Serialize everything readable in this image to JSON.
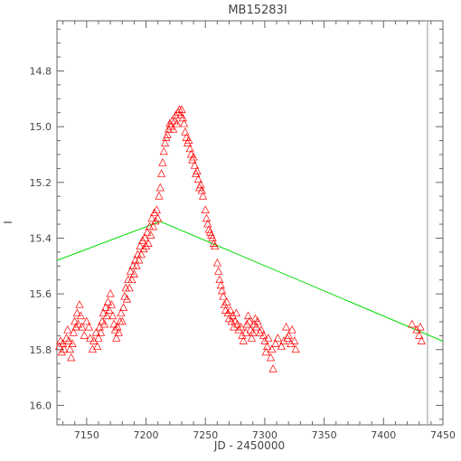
{
  "chart_data": {
    "type": "scatter",
    "title": "MB15283I",
    "xlabel": "JD - 2450000",
    "ylabel": "I",
    "xlim": [
      7125,
      7450
    ],
    "ylim": [
      16.07,
      14.62
    ],
    "y_inverted": true,
    "grid": false,
    "x_ticks": [
      7150,
      7200,
      7250,
      7300,
      7350,
      7400,
      7450
    ],
    "x_tick_labels": [
      "7150",
      "7200",
      "7250",
      "7300",
      "7350",
      "7400",
      "7450"
    ],
    "y_ticks": [
      14.8,
      15.0,
      15.2,
      15.4,
      15.6,
      15.8,
      16.0
    ],
    "y_tick_labels": [
      "14.8",
      "15.0",
      "15.2",
      "15.4",
      "15.6",
      "15.8",
      "16.0"
    ],
    "series": [
      {
        "marker": "triangle-open",
        "color": "#ff0000",
        "points": [
          [
            7127,
            15.79
          ],
          [
            7128,
            15.77
          ],
          [
            7129,
            15.81
          ],
          [
            7130,
            15.78
          ],
          [
            7131,
            15.8
          ],
          [
            7133,
            15.76
          ],
          [
            7134,
            15.73
          ],
          [
            7135,
            15.77
          ],
          [
            7136,
            15.8
          ],
          [
            7137,
            15.83
          ],
          [
            7138,
            15.78
          ],
          [
            7139,
            15.74
          ],
          [
            7140,
            15.7
          ],
          [
            7141,
            15.72
          ],
          [
            7142,
            15.67
          ],
          [
            7143,
            15.71
          ],
          [
            7144,
            15.64
          ],
          [
            7145,
            15.68
          ],
          [
            7146,
            15.72
          ],
          [
            7148,
            15.75
          ],
          [
            7150,
            15.7
          ],
          [
            7152,
            15.72
          ],
          [
            7153,
            15.76
          ],
          [
            7155,
            15.8
          ],
          [
            7156,
            15.77
          ],
          [
            7158,
            15.74
          ],
          [
            7159,
            15.79
          ],
          [
            7160,
            15.76
          ],
          [
            7161,
            15.72
          ],
          [
            7162,
            15.74
          ],
          [
            7163,
            15.7
          ],
          [
            7164,
            15.67
          ],
          [
            7165,
            15.71
          ],
          [
            7166,
            15.65
          ],
          [
            7167,
            15.68
          ],
          [
            7168,
            15.63
          ],
          [
            7169,
            15.66
          ],
          [
            7170,
            15.6
          ],
          [
            7171,
            15.64
          ],
          [
            7172,
            15.68
          ],
          [
            7173,
            15.71
          ],
          [
            7174,
            15.73
          ],
          [
            7175,
            15.76
          ],
          [
            7176,
            15.72
          ],
          [
            7177,
            15.74
          ],
          [
            7178,
            15.7
          ],
          [
            7179,
            15.67
          ],
          [
            7180,
            15.7
          ],
          [
            7181,
            15.65
          ],
          [
            7182,
            15.61
          ],
          [
            7183,
            15.58
          ],
          [
            7184,
            15.62
          ],
          [
            7185,
            15.55
          ],
          [
            7186,
            15.58
          ],
          [
            7187,
            15.52
          ],
          [
            7188,
            15.55
          ],
          [
            7189,
            15.5
          ],
          [
            7190,
            15.53
          ],
          [
            7191,
            15.48
          ],
          [
            7192,
            15.5
          ],
          [
            7193,
            15.46
          ],
          [
            7194,
            15.48
          ],
          [
            7195,
            15.43
          ],
          [
            7196,
            15.46
          ],
          [
            7197,
            15.41
          ],
          [
            7198,
            15.44
          ],
          [
            7199,
            15.4
          ],
          [
            7200,
            15.43
          ],
          [
            7201,
            15.38
          ],
          [
            7202,
            15.42
          ],
          [
            7203,
            15.36
          ],
          [
            7204,
            15.39
          ],
          [
            7205,
            15.33
          ],
          [
            7206,
            15.36
          ],
          [
            7207,
            15.31
          ],
          [
            7208,
            15.34
          ],
          [
            7209,
            15.3
          ],
          [
            7210,
            15.33
          ],
          [
            7211,
            15.25
          ],
          [
            7212,
            15.22
          ],
          [
            7213,
            15.17
          ],
          [
            7214,
            15.13
          ],
          [
            7215,
            15.09
          ],
          [
            7216,
            15.06
          ],
          [
            7217,
            15.04
          ],
          [
            7218,
            15.03
          ],
          [
            7219,
            15.01
          ],
          [
            7220,
            14.99
          ],
          [
            7221,
            15.0
          ],
          [
            7222,
            14.98
          ],
          [
            7223,
            15.01
          ],
          [
            7224,
            14.98
          ],
          [
            7225,
            14.96
          ],
          [
            7226,
            14.99
          ],
          [
            7227,
            14.95
          ],
          [
            7228,
            14.94
          ],
          [
            7229,
            14.96
          ],
          [
            7230,
            14.94
          ],
          [
            7231,
            14.97
          ],
          [
            7232,
            14.99
          ],
          [
            7233,
            15.02
          ],
          [
            7234,
            15.04
          ],
          [
            7235,
            15.06
          ],
          [
            7236,
            15.05
          ],
          [
            7237,
            15.08
          ],
          [
            7238,
            15.1
          ],
          [
            7239,
            15.12
          ],
          [
            7240,
            15.11
          ],
          [
            7241,
            15.14
          ],
          [
            7242,
            15.17
          ],
          [
            7243,
            15.16
          ],
          [
            7244,
            15.19
          ],
          [
            7245,
            15.22
          ],
          [
            7246,
            15.21
          ],
          [
            7247,
            15.23
          ],
          [
            7248,
            15.25
          ],
          [
            7250,
            15.3
          ],
          [
            7251,
            15.33
          ],
          [
            7252,
            15.35
          ],
          [
            7253,
            15.37
          ],
          [
            7254,
            15.38
          ],
          [
            7255,
            15.39
          ],
          [
            7256,
            15.4
          ],
          [
            7257,
            15.42
          ],
          [
            7258,
            15.43
          ],
          [
            7260,
            15.49
          ],
          [
            7261,
            15.52
          ],
          [
            7262,
            15.55
          ],
          [
            7263,
            15.57
          ],
          [
            7264,
            15.59
          ],
          [
            7265,
            15.61
          ],
          [
            7266,
            15.64
          ],
          [
            7267,
            15.66
          ],
          [
            7268,
            15.63
          ],
          [
            7269,
            15.67
          ],
          [
            7270,
            15.69
          ],
          [
            7271,
            15.66
          ],
          [
            7272,
            15.7
          ],
          [
            7273,
            15.68
          ],
          [
            7274,
            15.72
          ],
          [
            7275,
            15.7
          ],
          [
            7276,
            15.67
          ],
          [
            7277,
            15.71
          ],
          [
            7278,
            15.73
          ],
          [
            7280,
            15.72
          ],
          [
            7281,
            15.75
          ],
          [
            7282,
            15.77
          ],
          [
            7284,
            15.74
          ],
          [
            7285,
            15.71
          ],
          [
            7286,
            15.68
          ],
          [
            7287,
            15.7
          ],
          [
            7288,
            15.73
          ],
          [
            7289,
            15.76
          ],
          [
            7290,
            15.74
          ],
          [
            7291,
            15.71
          ],
          [
            7292,
            15.69
          ],
          [
            7293,
            15.72
          ],
          [
            7294,
            15.7
          ],
          [
            7296,
            15.74
          ],
          [
            7297,
            15.73
          ],
          [
            7299,
            15.75
          ],
          [
            7300,
            15.77
          ],
          [
            7301,
            15.81
          ],
          [
            7302,
            15.79
          ],
          [
            7303,
            15.76
          ],
          [
            7305,
            15.83
          ],
          [
            7306,
            15.8
          ],
          [
            7307,
            15.87
          ],
          [
            7309,
            15.78
          ],
          [
            7311,
            15.76
          ],
          [
            7314,
            15.79
          ],
          [
            7316,
            15.77
          ],
          [
            7318,
            15.72
          ],
          [
            7319,
            15.76
          ],
          [
            7320,
            15.75
          ],
          [
            7322,
            15.78
          ],
          [
            7323,
            15.73
          ],
          [
            7325,
            15.77
          ],
          [
            7326,
            15.8
          ],
          [
            7424,
            15.71
          ],
          [
            7428,
            15.73
          ],
          [
            7430,
            15.75
          ],
          [
            7431,
            15.72
          ],
          [
            7432,
            15.77
          ]
        ]
      }
    ],
    "fit_line": {
      "color": "#00dd00",
      "points": [
        [
          7125,
          15.48
        ],
        [
          7212,
          15.34
        ],
        [
          7450,
          15.77
        ]
      ]
    },
    "vertical_line": {
      "x": 7437,
      "color": "#999999"
    }
  }
}
